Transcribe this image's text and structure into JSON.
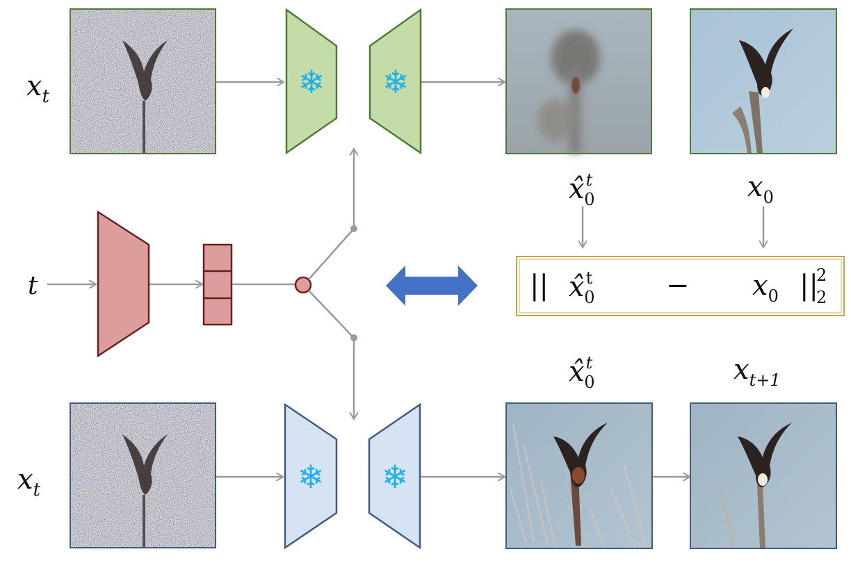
{
  "labels": {
    "top_input": {
      "base": "x",
      "sub": "t"
    },
    "bottom_input": {
      "base": "x",
      "sub": "t"
    },
    "timestep": "t",
    "top_pred": {
      "base": "x̂",
      "sup": "t",
      "sub": "0"
    },
    "top_target": {
      "base": "x",
      "sub": "0"
    },
    "bottom_pred": {
      "base": "x̂",
      "sup": "t",
      "sub": "0"
    },
    "bottom_next": {
      "base": "x",
      "sub": "t+1"
    }
  },
  "loss": {
    "left_bars": "||",
    "pred": {
      "base": "x̂",
      "sup": "t",
      "sub": "0"
    },
    "minus": "−",
    "target": {
      "base": "x",
      "sub": "0"
    },
    "right_bars": "||",
    "norm_sup": "2",
    "norm_sub": "2"
  },
  "icons": {
    "snowflake": "❄",
    "frozen_icon_name": "snowflake-icon",
    "double_arrow_name": "double-arrow-icon"
  },
  "colors": {
    "top_unet_fill": "#c3dca8",
    "top_unet_stroke": "#4f7a32",
    "bottom_unet_fill": "#d5e3f3",
    "bottom_unet_stroke": "#3f5b7e",
    "time_encoder_fill": "#dc9d9d",
    "time_encoder_stroke": "#6b2020",
    "arrow_gray": "#999999",
    "double_arrow": "#4472c4",
    "loss_border": "#c9a24a",
    "snowflake": "#1fb0ea"
  }
}
